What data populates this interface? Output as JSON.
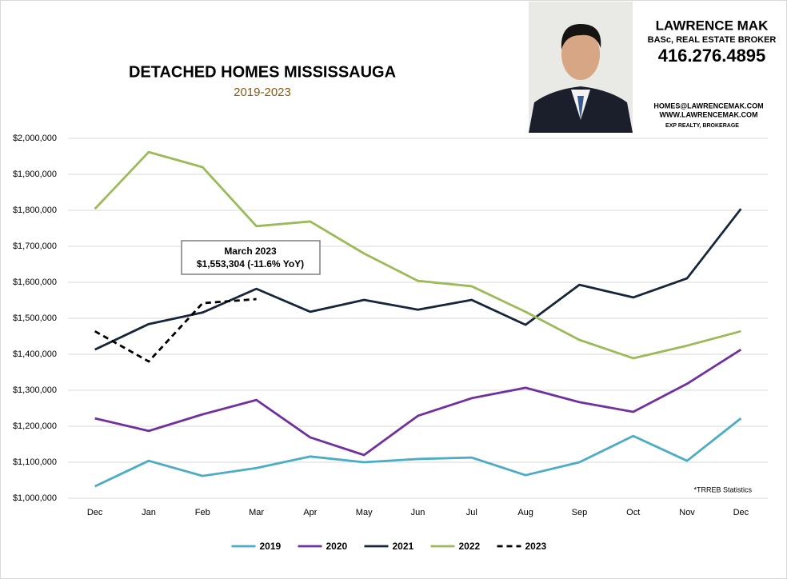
{
  "header": {
    "name": "LAWRENCE MAK",
    "credentials": "BASc, REAL ESTATE BROKER",
    "phone": "416.276.4895",
    "email": "HOMES@LAWRENCEMAK.COM",
    "website": "WWW.LAWRENCEMAK.COM",
    "brokerage": "EXP REALTY, BROKERAGE"
  },
  "chart_data": {
    "type": "line",
    "title": "DETACHED HOMES MISSISSAUGA",
    "subtitle": "2019-2023",
    "categories": [
      "Dec",
      "Jan",
      "Feb",
      "Mar",
      "Apr",
      "May",
      "Jun",
      "Jul",
      "Aug",
      "Sep",
      "Oct",
      "Nov",
      "Dec"
    ],
    "series": [
      {
        "name": "2019",
        "color": "#4bacc6",
        "dash": false,
        "values": [
          1033000,
          1104000,
          1062000,
          1084000,
          1116000,
          1100000,
          1109000,
          1113000,
          1064000,
          1100000,
          1173000,
          1104000,
          1222000
        ]
      },
      {
        "name": "2020",
        "color": "#7030a0",
        "dash": false,
        "values": [
          1222000,
          1187000,
          1233000,
          1273000,
          1169000,
          1120000,
          1229000,
          1278000,
          1307000,
          1267000,
          1240000,
          1318000,
          1413000
        ]
      },
      {
        "name": "2021",
        "color": "#17263a",
        "dash": false,
        "values": [
          1413000,
          1484000,
          1516000,
          1582000,
          1518000,
          1551000,
          1524000,
          1551000,
          1482000,
          1593000,
          1558000,
          1611000,
          1804000
        ]
      },
      {
        "name": "2022",
        "color": "#9bbb59",
        "dash": false,
        "values": [
          1804000,
          1962000,
          1920000,
          1756000,
          1769000,
          1680000,
          1604000,
          1589000,
          1518000,
          1440000,
          1389000,
          1424000,
          1464000
        ]
      },
      {
        "name": "2023",
        "color": "#000000",
        "dash": true,
        "values": [
          1464000,
          1380000,
          1542000,
          1553304,
          null,
          null,
          null,
          null,
          null,
          null,
          null,
          null,
          null
        ]
      }
    ],
    "ylim": [
      1000000,
      2000000
    ],
    "yticks": [
      {
        "value": 1000000,
        "label": "$1,000,000"
      },
      {
        "value": 1100000,
        "label": "$1,100,000"
      },
      {
        "value": 1200000,
        "label": "$1,200,000"
      },
      {
        "value": 1300000,
        "label": "$1,300,000"
      },
      {
        "value": 1400000,
        "label": "$1,400,000"
      },
      {
        "value": 1500000,
        "label": "$1,500,000"
      },
      {
        "value": 1600000,
        "label": "$1,600,000"
      },
      {
        "value": 1700000,
        "label": "$1,700,000"
      },
      {
        "value": 1800000,
        "label": "$1,800,000"
      },
      {
        "value": 1900000,
        "label": "$1,900,000"
      },
      {
        "value": 2000000,
        "label": "$2,000,000"
      }
    ],
    "grid": true,
    "legend": "bottom",
    "annotations": [
      {
        "title": "March 2023",
        "text": "$1,553,304  (-11.6%  YoY)"
      }
    ],
    "note": "*TRREB Statistics"
  }
}
